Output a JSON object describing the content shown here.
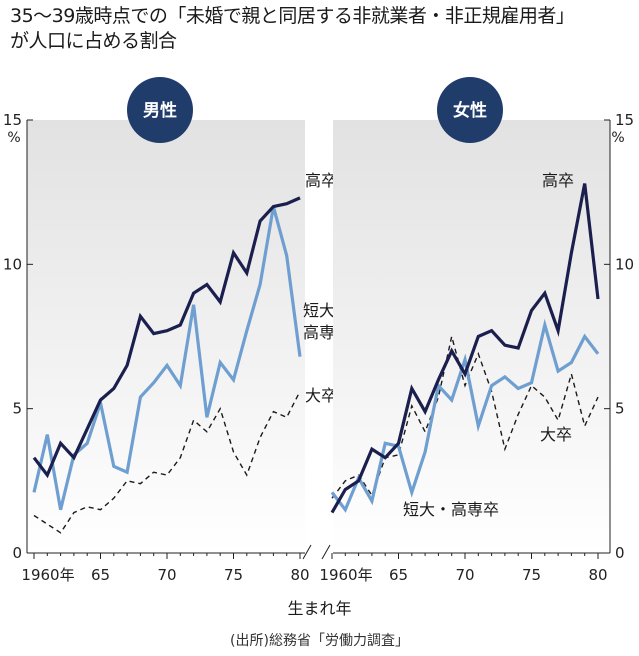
{
  "title_lines": [
    "35〜39歳時点での「未婚で親と同居する非就業者・非正規雇用者」",
    "が人口に占める割合"
  ],
  "xlabel": "生まれ年",
  "source": "(出所)総務省「労働力調査」",
  "unit": "%",
  "colors": {
    "high_school": "#1b1f4e",
    "junior_college": "#6f9fd0",
    "university": "#1a1a1a",
    "badge": "#1f3c6b",
    "panel_bg_top": "#e4e4e4"
  },
  "chart_data": [
    {
      "type": "line",
      "panel": "男性",
      "x": [
        1960,
        1961,
        1962,
        1963,
        1964,
        1965,
        1966,
        1967,
        1968,
        1969,
        1970,
        1971,
        1972,
        1973,
        1974,
        1975,
        1976,
        1977,
        1978,
        1979,
        1980
      ],
      "xticks": [
        "1960年",
        "65",
        "70",
        "75",
        "80"
      ],
      "yticks": [
        "0",
        "5",
        "10",
        "15"
      ],
      "ylim": [
        0,
        15
      ],
      "series": [
        {
          "name": "高卒",
          "key": "high_school",
          "values": [
            3.3,
            2.7,
            3.8,
            3.3,
            4.3,
            5.3,
            5.7,
            6.5,
            8.2,
            7.6,
            7.7,
            7.9,
            9.0,
            9.3,
            8.7,
            10.4,
            9.7,
            11.5,
            12.0,
            12.1,
            12.3
          ]
        },
        {
          "name": "短大・高専卒",
          "key": "junior_college",
          "values": [
            2.1,
            4.1,
            1.5,
            3.4,
            3.8,
            5.2,
            3.0,
            2.8,
            5.4,
            5.9,
            6.5,
            5.8,
            8.6,
            4.7,
            6.6,
            6.0,
            7.7,
            9.3,
            12.0,
            10.3,
            6.8
          ]
        },
        {
          "name": "大卒",
          "key": "university",
          "values": [
            1.3,
            1.0,
            0.7,
            1.4,
            1.6,
            1.5,
            1.9,
            2.5,
            2.4,
            2.8,
            2.7,
            3.3,
            4.6,
            4.2,
            5.0,
            3.5,
            2.7,
            4.0,
            4.9,
            4.7,
            5.6
          ]
        }
      ]
    },
    {
      "type": "line",
      "panel": "女性",
      "x": [
        1960,
        1961,
        1962,
        1963,
        1964,
        1965,
        1966,
        1967,
        1968,
        1969,
        1970,
        1971,
        1972,
        1973,
        1974,
        1975,
        1976,
        1977,
        1978,
        1979,
        1980
      ],
      "xticks": [
        "1960年",
        "65",
        "70",
        "75",
        "80"
      ],
      "yticks": [
        "0",
        "5",
        "10",
        "15"
      ],
      "ylim": [
        0,
        15
      ],
      "series": [
        {
          "name": "高卒",
          "key": "high_school",
          "values": [
            1.4,
            2.2,
            2.5,
            3.6,
            3.3,
            3.8,
            5.7,
            4.9,
            6.0,
            7.0,
            6.2,
            7.5,
            7.7,
            7.2,
            7.1,
            8.4,
            9.0,
            7.7,
            10.4,
            12.8,
            8.8
          ]
        },
        {
          "name": "短大・高専卒",
          "key": "junior_college",
          "values": [
            2.1,
            1.5,
            2.6,
            1.8,
            3.8,
            3.7,
            2.1,
            3.5,
            5.8,
            5.3,
            6.7,
            4.4,
            5.8,
            6.1,
            5.7,
            5.9,
            7.9,
            6.3,
            6.6,
            7.5,
            6.9
          ]
        },
        {
          "name": "大卒",
          "key": "university",
          "values": [
            1.9,
            2.5,
            2.7,
            2.0,
            3.3,
            3.4,
            5.1,
            4.2,
            5.4,
            7.5,
            5.8,
            6.9,
            5.6,
            3.6,
            4.8,
            5.8,
            5.4,
            4.6,
            6.2,
            4.4,
            5.4
          ]
        }
      ]
    }
  ]
}
